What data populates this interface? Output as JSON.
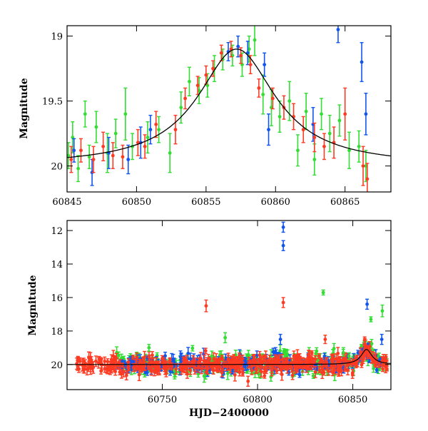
{
  "chart_data": [
    {
      "type": "scatter",
      "ylabel": "Magnitude",
      "xlim": [
        60845,
        60868.3
      ],
      "ylim": [
        20.2,
        18.92
      ],
      "inverted_y": true,
      "xticks": [
        60845,
        60850,
        60855,
        60860,
        60865
      ],
      "yticks": [
        19,
        19.5,
        20
      ],
      "xtick_labels": [
        "60845",
        "60850",
        "60855",
        "60860",
        "60865"
      ],
      "ytick_labels": [
        "19",
        "19.5",
        "20"
      ],
      "colors": {
        "green": "#33dd33",
        "red": "#ff3a22",
        "blue": "#1155ee",
        "model": "#000000"
      },
      "model_curve": {
        "peak_x": 60857.2,
        "peak_mag": 19.1,
        "baseline_mag": 20.0,
        "tE": 3.4
      },
      "series": [
        {
          "color": "green",
          "points": [
            [
              60845.1,
              19.92,
              0.1
            ],
            [
              60845.4,
              19.78,
              0.12
            ],
            [
              60845.8,
              20.02,
              0.1
            ],
            [
              60846.3,
              19.6,
              0.1
            ],
            [
              60846.6,
              19.93,
              0.09
            ],
            [
              60847.1,
              19.7,
              0.12
            ],
            [
              60847.9,
              19.9,
              0.15
            ],
            [
              60848.5,
              19.75,
              0.11
            ],
            [
              60849.2,
              19.6,
              0.2
            ],
            [
              60849.7,
              19.85,
              0.1
            ],
            [
              60850.8,
              19.78,
              0.12
            ],
            [
              60851.6,
              19.72,
              0.1
            ],
            [
              60852.4,
              19.9,
              0.15
            ],
            [
              60853.2,
              19.55,
              0.12
            ],
            [
              60853.8,
              19.35,
              0.11
            ],
            [
              60854.5,
              19.42,
              0.1
            ],
            [
              60855.1,
              19.38,
              0.09
            ],
            [
              60855.6,
              19.25,
              0.1
            ],
            [
              60856.2,
              19.18,
              0.08
            ],
            [
              60856.9,
              19.15,
              0.08
            ],
            [
              60857.6,
              19.22,
              0.09
            ],
            [
              60858.1,
              19.1,
              0.1
            ],
            [
              60858.5,
              19.03,
              0.12
            ],
            [
              60859.1,
              19.45,
              0.15
            ],
            [
              60859.7,
              19.55,
              0.14
            ],
            [
              60860.3,
              19.62,
              0.12
            ],
            [
              60861.0,
              19.5,
              0.15
            ],
            [
              60861.6,
              19.88,
              0.12
            ],
            [
              60862.2,
              19.58,
              0.14
            ],
            [
              60862.8,
              19.95,
              0.12
            ],
            [
              60863.3,
              19.6,
              0.12
            ],
            [
              60863.9,
              19.75,
              0.14
            ],
            [
              60864.6,
              19.65,
              0.12
            ],
            [
              60865.3,
              19.88,
              0.14
            ],
            [
              60866.0,
              19.85,
              0.12
            ],
            [
              60866.5,
              20.0,
              0.12
            ]
          ]
        },
        {
          "color": "blue",
          "points": [
            [
              60845.5,
              19.88,
              0.09
            ],
            [
              60846.8,
              20.05,
              0.1
            ],
            [
              60848.0,
              19.9,
              0.12
            ],
            [
              60849.4,
              19.95,
              0.11
            ],
            [
              60850.3,
              19.82,
              0.12
            ],
            [
              60851.0,
              19.72,
              0.11
            ],
            [
              60856.6,
              19.12,
              0.07
            ],
            [
              60857.3,
              19.08,
              0.08
            ],
            [
              60858.0,
              19.13,
              0.09
            ],
            [
              60859.2,
              19.22,
              0.09
            ],
            [
              60859.5,
              19.72,
              0.12
            ],
            [
              60862.7,
              19.68,
              0.13
            ],
            [
              60864.5,
              18.95,
              0.1
            ],
            [
              60866.2,
              19.2,
              0.15
            ],
            [
              60866.5,
              19.6,
              0.16
            ]
          ]
        },
        {
          "color": "red",
          "points": [
            [
              60845.3,
              19.95,
              0.1
            ],
            [
              60846.0,
              19.88,
              0.09
            ],
            [
              60846.9,
              19.95,
              0.1
            ],
            [
              60847.6,
              19.85,
              0.11
            ],
            [
              60848.3,
              19.92,
              0.1
            ],
            [
              60849.0,
              19.93,
              0.09
            ],
            [
              60850.1,
              19.82,
              0.1
            ],
            [
              60850.6,
              19.85,
              0.09
            ],
            [
              60851.4,
              19.68,
              0.1
            ],
            [
              60852.8,
              19.72,
              0.11
            ],
            [
              60853.5,
              19.48,
              0.08
            ],
            [
              60854.4,
              19.38,
              0.07
            ],
            [
              60855.0,
              19.3,
              0.07
            ],
            [
              60855.5,
              19.25,
              0.06
            ],
            [
              60856.1,
              19.13,
              0.06
            ],
            [
              60856.8,
              19.1,
              0.06
            ],
            [
              60857.5,
              19.15,
              0.06
            ],
            [
              60858.2,
              19.22,
              0.07
            ],
            [
              60858.8,
              19.4,
              0.07
            ],
            [
              60859.8,
              19.48,
              0.08
            ],
            [
              60860.6,
              19.55,
              0.09
            ],
            [
              60861.3,
              19.62,
              0.1
            ],
            [
              60862.0,
              19.72,
              0.1
            ],
            [
              60862.8,
              19.78,
              0.11
            ],
            [
              60863.5,
              19.85,
              0.1
            ],
            [
              60864.2,
              19.82,
              0.12
            ],
            [
              60865.0,
              19.6,
              0.2
            ],
            [
              60866.3,
              20.0,
              0.15
            ],
            [
              60866.6,
              20.1,
              0.12
            ]
          ]
        }
      ]
    },
    {
      "type": "scatter",
      "xlabel": "HJD−2400000",
      "ylabel": "Magnitude",
      "xlim": [
        60700,
        60870
      ],
      "ylim": [
        21.5,
        11.4
      ],
      "inverted_y": true,
      "xticks": [
        60750,
        60800,
        60850
      ],
      "yticks": [
        12,
        14,
        16,
        18,
        20
      ],
      "xtick_labels": [
        "60750",
        "60800",
        "60850"
      ],
      "ytick_labels": [
        "12",
        "14",
        "16",
        "18",
        "20"
      ],
      "model_curve": {
        "peak_x": 60857.2,
        "peak_mag": 19.1,
        "baseline_mag": 20.0,
        "tE": 3.4
      },
      "outliers": [
        {
          "color": "blue",
          "x": 60813.5,
          "y": 11.8,
          "err": 0.3
        },
        {
          "color": "blue",
          "x": 60813.5,
          "y": 12.9,
          "err": 0.3
        },
        {
          "color": "blue",
          "x": 60857.5,
          "y": 16.4,
          "err": 0.3
        },
        {
          "color": "blue",
          "x": 60865.2,
          "y": 18.5,
          "err": 0.3
        },
        {
          "color": "blue",
          "x": 60812.0,
          "y": 18.5,
          "err": 0.3
        },
        {
          "color": "red",
          "x": 60773.0,
          "y": 16.5,
          "err": 0.35
        },
        {
          "color": "red",
          "x": 60813.5,
          "y": 16.3,
          "err": 0.3
        },
        {
          "color": "red",
          "x": 60835.5,
          "y": 18.5,
          "err": 0.25
        },
        {
          "color": "red",
          "x": 60795.0,
          "y": 21.0,
          "err": 0.3
        },
        {
          "color": "green",
          "x": 60834.5,
          "y": 15.7,
          "err": 0.15
        },
        {
          "color": "green",
          "x": 60859.5,
          "y": 17.3,
          "err": 0.15
        },
        {
          "color": "green",
          "x": 60865.5,
          "y": 16.8,
          "err": 0.35
        },
        {
          "color": "green",
          "x": 60783.0,
          "y": 18.4,
          "err": 0.3
        },
        {
          "color": "green",
          "x": 60776.0,
          "y": 19.5,
          "err": 0.3
        },
        {
          "color": "green",
          "x": 60743.0,
          "y": 19.0,
          "err": 0.2
        },
        {
          "color": "green",
          "x": 60831.0,
          "y": 19.2,
          "err": 0.2
        },
        {
          "color": "green",
          "x": 60845.0,
          "y": 19.3,
          "err": 0.2
        },
        {
          "color": "green",
          "x": 60848.0,
          "y": 19.5,
          "err": 0.2
        }
      ],
      "baseline_points": {
        "red_start": 60705,
        "others_start": 60726,
        "end": 60868,
        "mag": 20.0,
        "scatter": 0.25
      }
    }
  ]
}
